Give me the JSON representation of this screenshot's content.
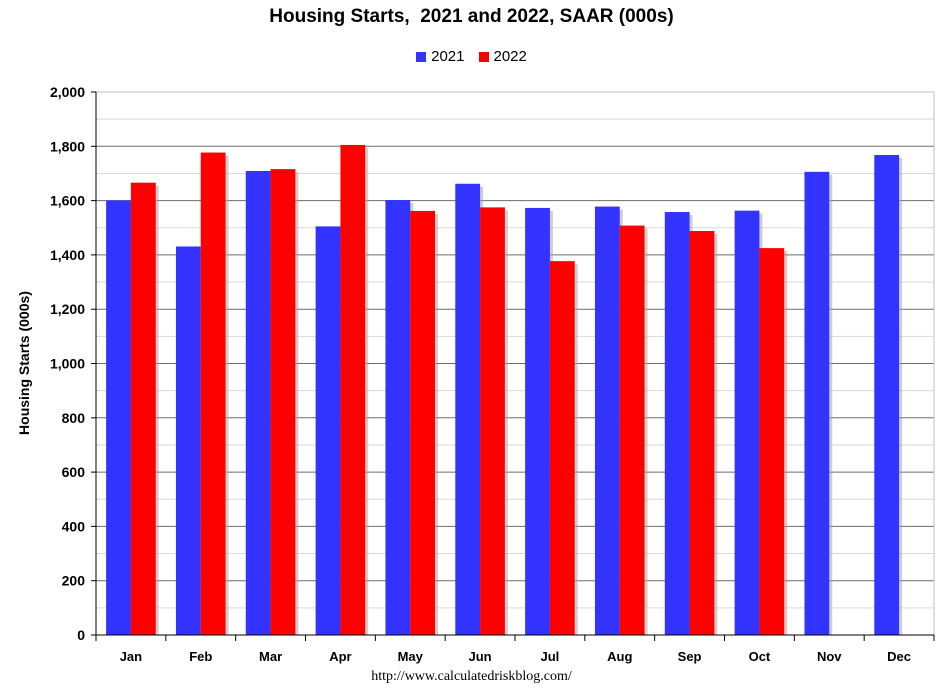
{
  "chart_data": {
    "type": "bar",
    "title": "Housing Starts,  2021 and 2022, SAAR (000s)",
    "xlabel": "",
    "ylabel": "Housing Starts (000s)",
    "categories": [
      "Jan",
      "Feb",
      "Mar",
      "Apr",
      "May",
      "Jun",
      "Jul",
      "Aug",
      "Sep",
      "Oct",
      "Nov",
      "Dec"
    ],
    "series": [
      {
        "name": "2021",
        "color": "#3333ff",
        "values": [
          1601,
          1431,
          1709,
          1505,
          1602,
          1662,
          1573,
          1578,
          1558,
          1563,
          1706,
          1768
        ]
      },
      {
        "name": "2022",
        "color": "#ff0000",
        "values": [
          1666,
          1777,
          1716,
          1805,
          1562,
          1575,
          1377,
          1508,
          1488,
          1425,
          null,
          null
        ]
      }
    ],
    "ylim": [
      0,
      2000
    ],
    "yticks": [
      "0",
      "200",
      "400",
      "600",
      "800",
      "1,000",
      "1,200",
      "1,400",
      "1,600",
      "1,800",
      "2,000"
    ],
    "grid": true,
    "legend_position": "top"
  },
  "footer": "http://www.calculatedriskblog.com/"
}
